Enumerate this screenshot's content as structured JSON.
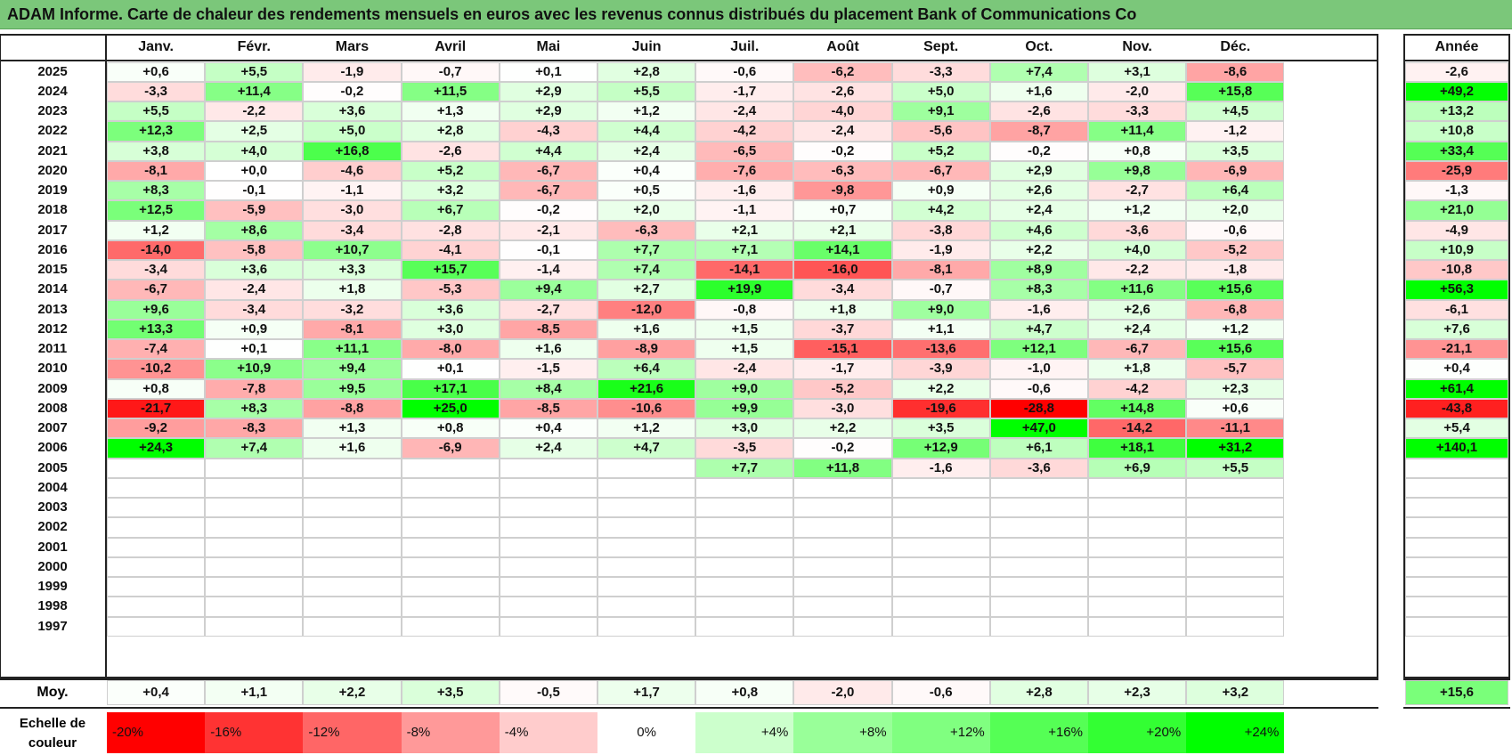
{
  "title": "ADAM Informe. Carte de chaleur des rendements mensuels en euros avec les revenus connus distribués du placement Bank of Communications Co",
  "chart_data": {
    "type": "heatmap",
    "title": "ADAM Informe. Carte de chaleur des rendements mensuels en euros avec les revenus connus distribués du placement Bank of Communications Co",
    "columns": [
      "Janv.",
      "Févr.",
      "Mars",
      "Avril",
      "Mai",
      "Juin",
      "Juil.",
      "Août",
      "Sept.",
      "Oct.",
      "Nov.",
      "Déc."
    ],
    "annual_header": "Année",
    "rows": [
      {
        "year": "2025",
        "values": [
          "+0,6",
          "+5,5",
          "-1,9",
          "-0,7",
          "+0,1",
          "+2,8",
          "-0,6",
          "-6,2",
          "-3,3",
          "+7,4",
          "+3,1",
          "-8,6"
        ],
        "annual": "-2,6"
      },
      {
        "year": "2024",
        "values": [
          "-3,3",
          "+11,4",
          "-0,2",
          "+11,5",
          "+2,9",
          "+5,5",
          "-1,7",
          "-2,6",
          "+5,0",
          "+1,6",
          "-2,0",
          "+15,8"
        ],
        "annual": "+49,2"
      },
      {
        "year": "2023",
        "values": [
          "+5,5",
          "-2,2",
          "+3,6",
          "+1,3",
          "+2,9",
          "+1,2",
          "-2,4",
          "-4,0",
          "+9,1",
          "-2,6",
          "-3,3",
          "+4,5"
        ],
        "annual": "+13,2"
      },
      {
        "year": "2022",
        "values": [
          "+12,3",
          "+2,5",
          "+5,0",
          "+2,8",
          "-4,3",
          "+4,4",
          "-4,2",
          "-2,4",
          "-5,6",
          "-8,7",
          "+11,4",
          "-1,2"
        ],
        "annual": "+10,8"
      },
      {
        "year": "2021",
        "values": [
          "+3,8",
          "+4,0",
          "+16,8",
          "-2,6",
          "+4,4",
          "+2,4",
          "-6,5",
          "-0,2",
          "+5,2",
          "-0,2",
          "+0,8",
          "+3,5"
        ],
        "annual": "+33,4"
      },
      {
        "year": "2020",
        "values": [
          "-8,1",
          "+0,0",
          "-4,6",
          "+5,2",
          "-6,7",
          "+0,4",
          "-7,6",
          "-6,3",
          "-6,7",
          "+2,9",
          "+9,8",
          "-6,9"
        ],
        "annual": "-25,9"
      },
      {
        "year": "2019",
        "values": [
          "+8,3",
          "-0,1",
          "-1,1",
          "+3,2",
          "-6,7",
          "+0,5",
          "-1,6",
          "-9,8",
          "+0,9",
          "+2,6",
          "-2,7",
          "+6,4"
        ],
        "annual": "-1,3"
      },
      {
        "year": "2018",
        "values": [
          "+12,5",
          "-5,9",
          "-3,0",
          "+6,7",
          "-0,2",
          "+2,0",
          "-1,1",
          "+0,7",
          "+4,2",
          "+2,4",
          "+1,2",
          "+2,0"
        ],
        "annual": "+21,0"
      },
      {
        "year": "2017",
        "values": [
          "+1,2",
          "+8,6",
          "-3,4",
          "-2,8",
          "-2,1",
          "-6,3",
          "+2,1",
          "+2,1",
          "-3,8",
          "+4,6",
          "-3,6",
          "-0,6"
        ],
        "annual": "-4,9"
      },
      {
        "year": "2016",
        "values": [
          "-14,0",
          "-5,8",
          "+10,7",
          "-4,1",
          "-0,1",
          "+7,7",
          "+7,1",
          "+14,1",
          "-1,9",
          "+2,2",
          "+4,0",
          "-5,2"
        ],
        "annual": "+10,9"
      },
      {
        "year": "2015",
        "values": [
          "-3,4",
          "+3,6",
          "+3,3",
          "+15,7",
          "-1,4",
          "+7,4",
          "-14,1",
          "-16,0",
          "-8,1",
          "+8,9",
          "-2,2",
          "-1,8"
        ],
        "annual": "-10,8"
      },
      {
        "year": "2014",
        "values": [
          "-6,7",
          "-2,4",
          "+1,8",
          "-5,3",
          "+9,4",
          "+2,7",
          "+19,9",
          "-3,4",
          "-0,7",
          "+8,3",
          "+11,6",
          "+15,6"
        ],
        "annual": "+56,3"
      },
      {
        "year": "2013",
        "values": [
          "+9,6",
          "-3,4",
          "-3,2",
          "+3,6",
          "-2,7",
          "-12,0",
          "-0,8",
          "+1,8",
          "+9,0",
          "-1,6",
          "+2,6",
          "-6,8"
        ],
        "annual": "-6,1"
      },
      {
        "year": "2012",
        "values": [
          "+13,3",
          "+0,9",
          "-8,1",
          "+3,0",
          "-8,5",
          "+1,6",
          "+1,5",
          "-3,7",
          "+1,1",
          "+4,7",
          "+2,4",
          "+1,2"
        ],
        "annual": "+7,6"
      },
      {
        "year": "2011",
        "values": [
          "-7,4",
          "+0,1",
          "+11,1",
          "-8,0",
          "+1,6",
          "-8,9",
          "+1,5",
          "-15,1",
          "-13,6",
          "+12,1",
          "-6,7",
          "+15,6"
        ],
        "annual": "-21,1"
      },
      {
        "year": "2010",
        "values": [
          "-10,2",
          "+10,9",
          "+9,4",
          "+0,1",
          "-1,5",
          "+6,4",
          "-2,4",
          "-1,7",
          "-3,9",
          "-1,0",
          "+1,8",
          "-5,7"
        ],
        "annual": "+0,4"
      },
      {
        "year": "2009",
        "values": [
          "+0,8",
          "-7,8",
          "+9,5",
          "+17,1",
          "+8,4",
          "+21,6",
          "+9,0",
          "-5,2",
          "+2,2",
          "-0,6",
          "-4,2",
          "+2,3"
        ],
        "annual": "+61,4"
      },
      {
        "year": "2008",
        "values": [
          "-21,7",
          "+8,3",
          "-8,8",
          "+25,0",
          "-8,5",
          "-10,6",
          "+9,9",
          "-3,0",
          "-19,6",
          "-28,8",
          "+14,8",
          "+0,6"
        ],
        "annual": "-43,8"
      },
      {
        "year": "2007",
        "values": [
          "-9,2",
          "-8,3",
          "+1,3",
          "+0,8",
          "+0,4",
          "+1,2",
          "+3,0",
          "+2,2",
          "+3,5",
          "+47,0",
          "-14,2",
          "-11,1"
        ],
        "annual": "+5,4"
      },
      {
        "year": "2006",
        "values": [
          "+24,3",
          "+7,4",
          "+1,6",
          "-6,9",
          "+2,4",
          "+4,7",
          "-3,5",
          "-0,2",
          "+12,9",
          "+6,1",
          "+18,1",
          "+31,2"
        ],
        "annual": "+140,1"
      },
      {
        "year": "2005",
        "values": [
          "",
          "",
          "",
          "",
          "",
          "",
          "+7,7",
          "+11,8",
          "-1,6",
          "-3,6",
          "+6,9",
          "+5,5"
        ],
        "annual": ""
      },
      {
        "year": "2004",
        "values": [
          "",
          "",
          "",
          "",
          "",
          "",
          "",
          "",
          "",
          "",
          "",
          ""
        ],
        "annual": ""
      },
      {
        "year": "2003",
        "values": [
          "",
          "",
          "",
          "",
          "",
          "",
          "",
          "",
          "",
          "",
          "",
          ""
        ],
        "annual": ""
      },
      {
        "year": "2002",
        "values": [
          "",
          "",
          "",
          "",
          "",
          "",
          "",
          "",
          "",
          "",
          "",
          ""
        ],
        "annual": ""
      },
      {
        "year": "2001",
        "values": [
          "",
          "",
          "",
          "",
          "",
          "",
          "",
          "",
          "",
          "",
          "",
          ""
        ],
        "annual": ""
      },
      {
        "year": "2000",
        "values": [
          "",
          "",
          "",
          "",
          "",
          "",
          "",
          "",
          "",
          "",
          "",
          ""
        ],
        "annual": ""
      },
      {
        "year": "1999",
        "values": [
          "",
          "",
          "",
          "",
          "",
          "",
          "",
          "",
          "",
          "",
          "",
          ""
        ],
        "annual": ""
      },
      {
        "year": "1998",
        "values": [
          "",
          "",
          "",
          "",
          "",
          "",
          "",
          "",
          "",
          "",
          "",
          ""
        ],
        "annual": ""
      },
      {
        "year": "1997",
        "values": [
          "",
          "",
          "",
          "",
          "",
          "",
          "",
          "",
          "",
          "",
          "",
          ""
        ],
        "annual": ""
      }
    ],
    "average": {
      "label": "Moy.",
      "values": [
        "+0,4",
        "+1,1",
        "+2,2",
        "+3,5",
        "-0,5",
        "+1,7",
        "+0,8",
        "-2,0",
        "-0,6",
        "+2,8",
        "+2,3",
        "+3,2"
      ],
      "annual": "+15,6"
    },
    "scale": {
      "label": "Echelle de couleur",
      "stops": [
        {
          "label": "-20%",
          "color": "#ff0000"
        },
        {
          "label": "-16%",
          "color": "#ff3333"
        },
        {
          "label": "-12%",
          "color": "#ff6666"
        },
        {
          "label": "-8%",
          "color": "#ff9999"
        },
        {
          "label": "-4%",
          "color": "#ffcccc"
        },
        {
          "label": "0%",
          "color": "#ffffff"
        },
        {
          "label": "+4%",
          "color": "#ccffcc"
        },
        {
          "label": "+8%",
          "color": "#99ff99"
        },
        {
          "label": "+12%",
          "color": "#80ff80"
        },
        {
          "label": "+16%",
          "color": "#55ff55"
        },
        {
          "label": "+20%",
          "color": "#33ff33"
        },
        {
          "label": "+24%",
          "color": "#00ff00"
        }
      ]
    }
  }
}
